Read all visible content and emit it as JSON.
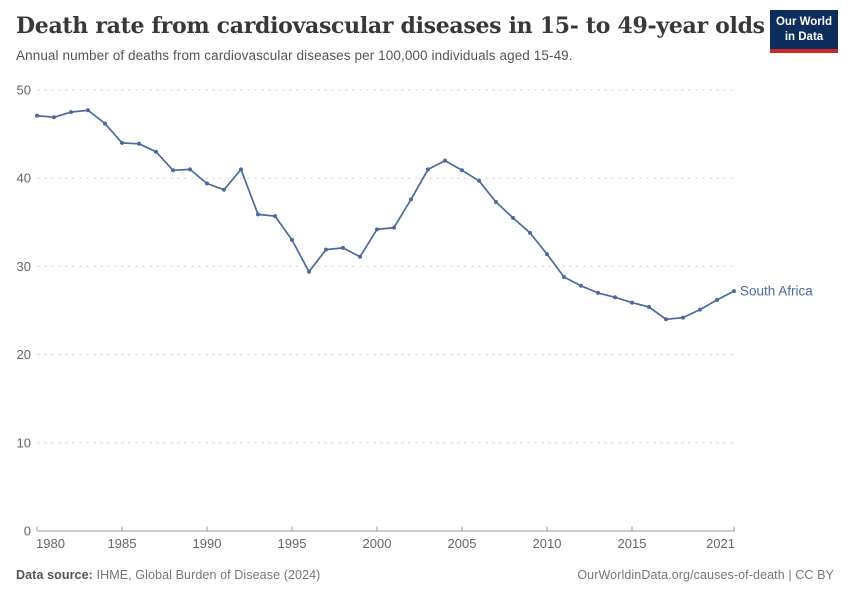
{
  "header": {
    "title": "Death rate from cardiovascular diseases in 15- to 49-year olds",
    "subtitle": "Annual number of deaths from cardiovascular diseases per 100,000 individuals aged 15-49.",
    "logo": {
      "line1": "Our World",
      "line2": "in Data"
    }
  },
  "chart_data": {
    "type": "line",
    "title": "Death rate from cardiovascular diseases in 15- to 49-year olds",
    "xlabel": "",
    "ylabel": "",
    "ylim": [
      0,
      50
    ],
    "yticks": [
      0,
      10,
      20,
      30,
      40,
      50
    ],
    "xticks": [
      1980,
      1985,
      1990,
      1995,
      2000,
      2005,
      2010,
      2015,
      2021
    ],
    "grid": "horizontal-dashed",
    "legend_position": "end-of-line-label",
    "x": [
      1980,
      1981,
      1982,
      1983,
      1984,
      1985,
      1986,
      1987,
      1988,
      1989,
      1990,
      1991,
      1992,
      1993,
      1994,
      1995,
      1996,
      1997,
      1998,
      1999,
      2000,
      2001,
      2002,
      2003,
      2004,
      2005,
      2006,
      2007,
      2008,
      2009,
      2010,
      2011,
      2012,
      2013,
      2014,
      2015,
      2016,
      2017,
      2018,
      2019,
      2020,
      2021
    ],
    "series": [
      {
        "name": "South Africa",
        "color": "#4c6a9c",
        "values": [
          47.1,
          46.9,
          47.5,
          47.7,
          46.2,
          44.0,
          43.9,
          43.0,
          40.9,
          41.0,
          39.4,
          38.7,
          41.0,
          35.9,
          35.7,
          33.0,
          29.4,
          31.9,
          32.1,
          31.1,
          34.2,
          34.4,
          37.6,
          41.0,
          42.0,
          40.9,
          39.7,
          37.3,
          35.5,
          33.8,
          31.4,
          28.8,
          27.8,
          27.0,
          26.5,
          25.9,
          25.4,
          24.0,
          24.2,
          25.1,
          26.2,
          27.2
        ]
      }
    ]
  },
  "footer": {
    "source_label": "Data source:",
    "source": "IHME, Global Burden of Disease (2024)",
    "credit": "OurWorldinData.org/causes-of-death | CC BY"
  },
  "colors": {
    "line": "#4c6a9c",
    "grid": "#dadada",
    "axis": "#999999",
    "tick_label": "#666666",
    "title": "#383838",
    "subtitle": "#555555",
    "footer_text": "#777777",
    "logo_bg": "#0d2e5c",
    "logo_accent": "#cf2722"
  }
}
